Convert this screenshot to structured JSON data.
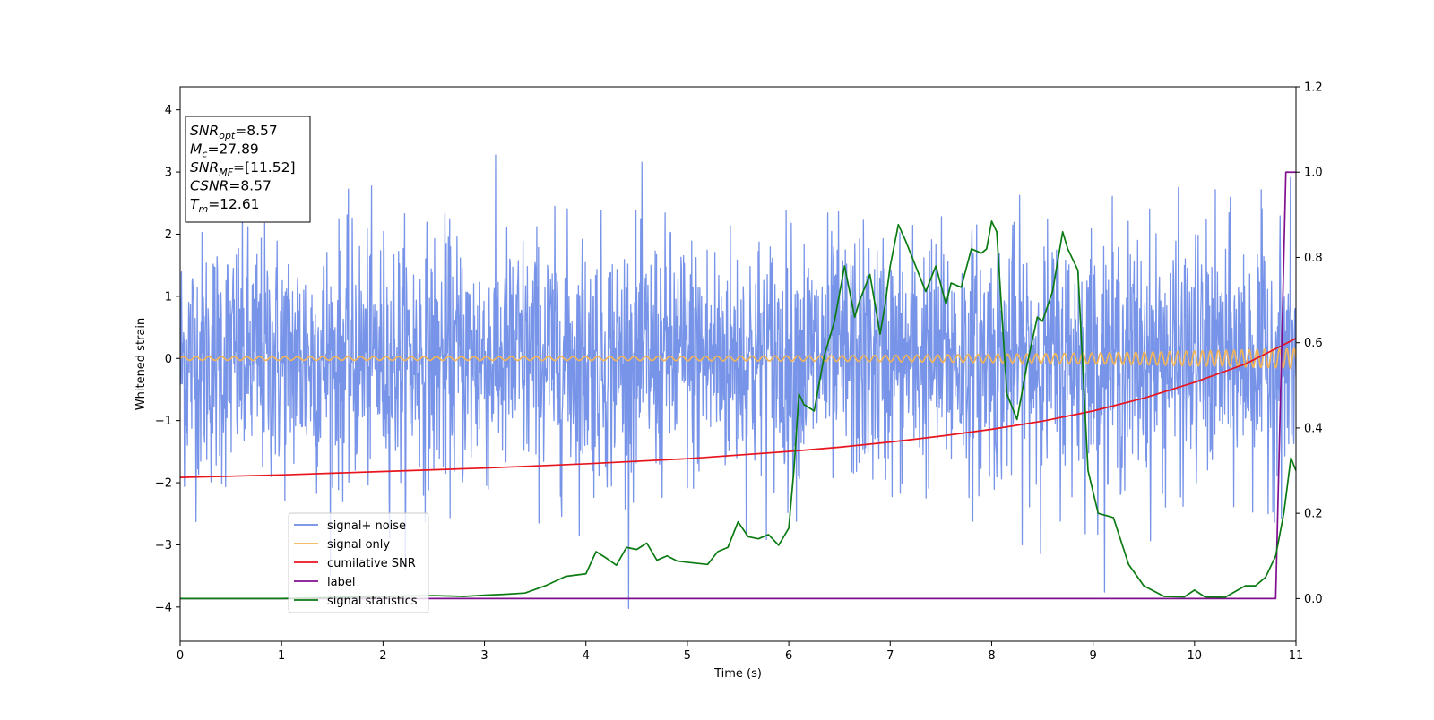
{
  "chart_data": {
    "type": "line",
    "xlabel": "Time (s)",
    "ylabel": "Whitened strain",
    "xlim": [
      0,
      11
    ],
    "ylim_left": [
      -4.55,
      4.37
    ],
    "ylim_right": [
      -0.1,
      1.2
    ],
    "x_ticks": [
      "0",
      "1",
      "2",
      "3",
      "4",
      "5",
      "6",
      "7",
      "8",
      "9",
      "10",
      "11"
    ],
    "y_ticks_left": [
      "−4",
      "−3",
      "−2",
      "−1",
      "0",
      "1",
      "2",
      "3",
      "4"
    ],
    "y_ticks_right": [
      "0.0",
      "0.2",
      "0.4",
      "0.6",
      "0.8",
      "1.0",
      "1.2"
    ],
    "grid": false,
    "legend_position": "lower-left",
    "annotation_box": {
      "position": "top-left",
      "lines": [
        {
          "main": "SNR",
          "sub": "opt",
          "value": "=8.57"
        },
        {
          "main": "M",
          "sub": "c",
          "value": "=27.89"
        },
        {
          "main": "SNR",
          "sub": "MF",
          "value": "=[11.52]"
        },
        {
          "main": "CSNR",
          "sub": "",
          "value": "=8.57"
        },
        {
          "main": "T",
          "sub": "m",
          "value": "=12.61"
        }
      ]
    },
    "series": [
      {
        "name": "signal+ noise",
        "axis": "left",
        "color": "#6d8be6",
        "kind": "noise",
        "sigma": 1.0,
        "x_range": [
          0,
          11
        ]
      },
      {
        "name": "signal only",
        "axis": "left",
        "color": "#f0b45a",
        "kind": "chirp",
        "x_range": [
          0,
          11
        ],
        "amplitude_start": 0.03,
        "amplitude_end": 0.16,
        "cycles_per_second_start": 8.0,
        "cycles_per_second_end": 14.0
      },
      {
        "name": "cumilative SNR",
        "axis": "right",
        "color": "#e8141e",
        "x": [
          0,
          1,
          2,
          3,
          4,
          5,
          6,
          6.5,
          7,
          7.5,
          8,
          8.5,
          9,
          9.5,
          10,
          10.5,
          11
        ],
        "y": [
          0.284,
          0.29,
          0.298,
          0.306,
          0.316,
          0.328,
          0.345,
          0.355,
          0.367,
          0.381,
          0.397,
          0.416,
          0.44,
          0.47,
          0.507,
          0.55,
          0.61
        ]
      },
      {
        "name": "label",
        "axis": "right",
        "color": "#7f0f8e",
        "x": [
          0,
          10.8,
          10.9,
          11
        ],
        "y": [
          0.0,
          0.0,
          1.0,
          1.0
        ]
      },
      {
        "name": "signal statistics",
        "axis": "right",
        "color": "#0a7a12",
        "x": [
          0,
          1,
          2,
          2.5,
          2.8,
          3.0,
          3.2,
          3.4,
          3.6,
          3.8,
          4.0,
          4.1,
          4.2,
          4.3,
          4.4,
          4.5,
          4.6,
          4.7,
          4.8,
          4.9,
          5.0,
          5.2,
          5.3,
          5.4,
          5.5,
          5.6,
          5.7,
          5.8,
          5.9,
          6.0,
          6.05,
          6.1,
          6.15,
          6.25,
          6.35,
          6.45,
          6.55,
          6.65,
          6.7,
          6.8,
          6.9,
          6.95,
          7.0,
          7.08,
          7.15,
          7.25,
          7.35,
          7.45,
          7.55,
          7.6,
          7.7,
          7.8,
          7.9,
          7.95,
          8.0,
          8.05,
          8.15,
          8.25,
          8.35,
          8.45,
          8.5,
          8.6,
          8.7,
          8.75,
          8.85,
          8.95,
          9.05,
          9.2,
          9.35,
          9.5,
          9.7,
          9.9,
          10.0,
          10.1,
          10.3,
          10.5,
          10.6,
          10.7,
          10.8,
          10.88,
          10.95,
          11.0
        ],
        "y": [
          0.0,
          0.0,
          0.005,
          0.007,
          0.005,
          0.008,
          0.01,
          0.013,
          0.03,
          0.052,
          0.058,
          0.11,
          0.095,
          0.078,
          0.12,
          0.115,
          0.13,
          0.09,
          0.1,
          0.088,
          0.085,
          0.08,
          0.11,
          0.12,
          0.18,
          0.145,
          0.14,
          0.15,
          0.125,
          0.165,
          0.3,
          0.48,
          0.455,
          0.44,
          0.57,
          0.65,
          0.78,
          0.66,
          0.7,
          0.76,
          0.62,
          0.69,
          0.78,
          0.877,
          0.84,
          0.78,
          0.72,
          0.78,
          0.69,
          0.74,
          0.73,
          0.82,
          0.81,
          0.82,
          0.885,
          0.86,
          0.48,
          0.42,
          0.55,
          0.66,
          0.65,
          0.72,
          0.86,
          0.82,
          0.77,
          0.3,
          0.2,
          0.19,
          0.08,
          0.03,
          0.005,
          0.004,
          0.02,
          0.004,
          0.003,
          0.03,
          0.03,
          0.05,
          0.1,
          0.2,
          0.33,
          0.3
        ]
      }
    ]
  }
}
